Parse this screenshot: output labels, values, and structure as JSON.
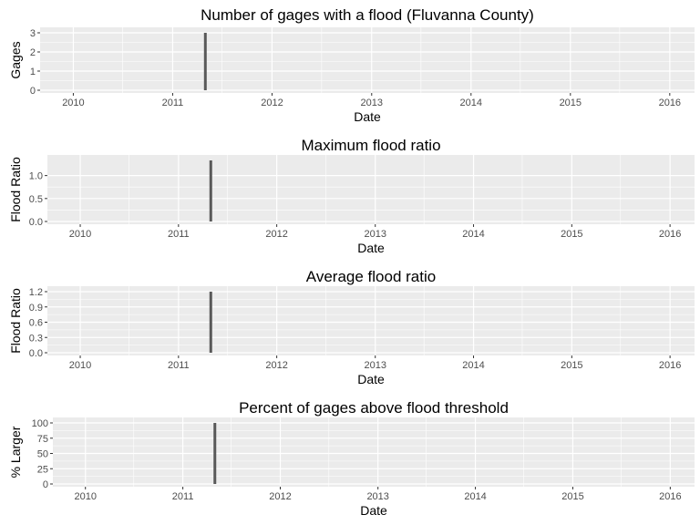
{
  "chart_data": [
    {
      "type": "bar",
      "title": "Number of gages with a flood (Fluvanna County)",
      "xlabel": "Date",
      "ylabel": "Gages",
      "x_ticks": [
        "2010",
        "2011",
        "2012",
        "2013",
        "2014",
        "2015",
        "2016"
      ],
      "y_ticks": [
        0,
        1,
        2,
        3
      ],
      "xlim": [
        "2009-09",
        "2016-04"
      ],
      "ylim": [
        0,
        3
      ],
      "points": [
        {
          "x": "2011-05-01",
          "y": 3
        }
      ],
      "grid": true,
      "bar_color": "#595959"
    },
    {
      "type": "bar",
      "title": "Maximum flood ratio",
      "xlabel": "Date",
      "ylabel": "Flood Ratio",
      "x_ticks": [
        "2010",
        "2011",
        "2012",
        "2013",
        "2014",
        "2015",
        "2016"
      ],
      "y_ticks": [
        "0.0",
        "0.5",
        "1.0"
      ],
      "xlim": [
        "2009-09",
        "2016-04"
      ],
      "ylim": [
        0,
        1.33
      ],
      "points": [
        {
          "x": "2011-05-01",
          "y": 1.33
        }
      ],
      "grid": true,
      "bar_color": "#595959"
    },
    {
      "type": "bar",
      "title": "Average flood ratio",
      "xlabel": "Date",
      "ylabel": "Flood Ratio",
      "x_ticks": [
        "2010",
        "2011",
        "2012",
        "2013",
        "2014",
        "2015",
        "2016"
      ],
      "y_ticks": [
        "0.0",
        "0.3",
        "0.6",
        "0.9",
        "1.2"
      ],
      "xlim": [
        "2009-09",
        "2016-04"
      ],
      "ylim": [
        0,
        1.2
      ],
      "points": [
        {
          "x": "2011-05-01",
          "y": 1.2
        }
      ],
      "grid": true,
      "bar_color": "#595959"
    },
    {
      "type": "bar",
      "title": "Percent of gages above flood threshold",
      "xlabel": "Date",
      "ylabel": "% Larger",
      "x_ticks": [
        "2010",
        "2011",
        "2012",
        "2013",
        "2014",
        "2015",
        "2016"
      ],
      "y_ticks": [
        0,
        25,
        50,
        75,
        100
      ],
      "xlim": [
        "2009-09",
        "2016-04"
      ],
      "ylim": [
        0,
        100
      ],
      "points": [
        {
          "x": "2011-05-01",
          "y": 100
        }
      ],
      "grid": true,
      "bar_color": "#595959"
    }
  ]
}
